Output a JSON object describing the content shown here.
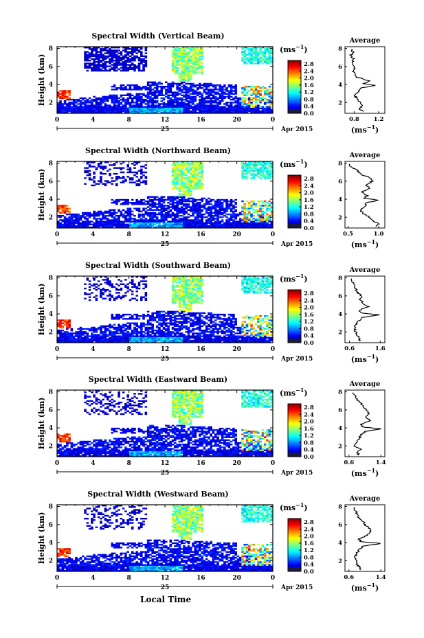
{
  "figure": {
    "xlabel_shared": "Local Time",
    "day_label": "25",
    "month_label": "Apr 2015",
    "height_label": "Height (km)",
    "cbar_unit": "(ms",
    "cbar_unit_exp": "−1",
    "cbar_unit_close": ")",
    "avg_title": "Average",
    "avg_unit": "(ms",
    "avg_unit_exp": "−1",
    "avg_unit_close": ")"
  },
  "chart_data": [
    {
      "type": "heatmap",
      "title": "Spectral Width (Vertical Beam)",
      "x_ticks": [
        "0",
        "4",
        "8",
        "12",
        "16",
        "20",
        "0"
      ],
      "y_ticks": [
        "2",
        "4",
        "6",
        "8"
      ],
      "xlim": [
        0,
        24
      ],
      "ylim": [
        0.8,
        8.2
      ],
      "colorbar_ticks": [
        "0.0",
        "0.4",
        "0.8",
        "1.2",
        "1.6",
        "2.0",
        "2.4",
        "2.8"
      ],
      "clim": [
        0,
        3.0
      ],
      "avg_title": "Average",
      "avg_x_ticks": [
        "0.8",
        "1.2"
      ],
      "avg_xlim": [
        0.65,
        1.3
      ],
      "avg_y_ticks": [
        "2",
        "4",
        "6",
        "8"
      ],
      "avg_profile": {
        "height": [
          1.0,
          1.3,
          1.6,
          2.0,
          2.4,
          2.8,
          3.2,
          3.6,
          3.9,
          4.1,
          4.4,
          4.8,
          5.2,
          5.6,
          6.0,
          6.4,
          6.8,
          7.2,
          7.6,
          8.0
        ],
        "value": [
          0.95,
          0.88,
          0.93,
          0.9,
          0.85,
          0.8,
          0.86,
          0.9,
          1.15,
          0.95,
          1.05,
          0.85,
          0.8,
          0.78,
          0.82,
          0.76,
          0.8,
          0.74,
          0.78,
          0.75
        ]
      }
    },
    {
      "type": "heatmap",
      "title": "Spectral Width (Northward Beam)",
      "x_ticks": [
        "0",
        "4",
        "8",
        "12",
        "16",
        "20",
        "0"
      ],
      "y_ticks": [
        "2",
        "4",
        "6",
        "8"
      ],
      "xlim": [
        0,
        24
      ],
      "ylim": [
        0.8,
        8.2
      ],
      "colorbar_ticks": [
        "0.0",
        "0.4",
        "0.8",
        "1.2",
        "1.6",
        "2.0",
        "2.4",
        "2.8"
      ],
      "clim": [
        0,
        3.0
      ],
      "avg_title": "Average",
      "avg_x_ticks": [
        "0.5",
        "1.0"
      ],
      "avg_xlim": [
        0.45,
        1.1
      ],
      "avg_y_ticks": [
        "2",
        "4",
        "6",
        "8"
      ],
      "avg_profile": {
        "height": [
          1.0,
          1.3,
          1.6,
          2.0,
          2.4,
          2.8,
          3.2,
          3.6,
          3.9,
          4.1,
          4.4,
          4.8,
          5.2,
          5.6,
          6.0,
          6.4,
          6.8,
          7.2,
          7.6,
          8.0
        ],
        "value": [
          0.95,
          1.0,
          0.9,
          0.85,
          0.75,
          0.7,
          0.78,
          0.8,
          1.0,
          0.75,
          0.82,
          0.72,
          0.85,
          0.8,
          0.9,
          0.85,
          0.7,
          0.65,
          0.55,
          0.5
        ]
      }
    },
    {
      "type": "heatmap",
      "title": "Spectral Width (Southward Beam)",
      "x_ticks": [
        "0",
        "4",
        "8",
        "12",
        "16",
        "20",
        "0"
      ],
      "y_ticks": [
        "2",
        "4",
        "6",
        "8"
      ],
      "xlim": [
        0,
        24
      ],
      "ylim": [
        0.8,
        8.2
      ],
      "colorbar_ticks": [
        "0.0",
        "0.4",
        "0.8",
        "1.2",
        "1.6",
        "2.0",
        "2.4",
        "2.8"
      ],
      "clim": [
        0,
        3.0
      ],
      "avg_title": "Average",
      "avg_x_ticks": [
        "0.6",
        "1.6"
      ],
      "avg_xlim": [
        0.45,
        1.75
      ],
      "avg_y_ticks": [
        "2",
        "4",
        "6",
        "8"
      ],
      "avg_profile": {
        "height": [
          1.0,
          1.3,
          1.6,
          2.0,
          2.4,
          2.8,
          3.2,
          3.6,
          3.9,
          4.1,
          4.4,
          4.8,
          5.2,
          5.6,
          6.0,
          6.4,
          6.8,
          7.2,
          7.6,
          8.0
        ],
        "value": [
          0.9,
          0.95,
          0.85,
          0.8,
          0.75,
          0.8,
          0.9,
          1.0,
          1.55,
          1.0,
          0.9,
          1.2,
          1.05,
          0.95,
          1.0,
          0.85,
          0.8,
          0.75,
          0.7,
          0.65
        ]
      }
    },
    {
      "type": "heatmap",
      "title": "Spectral Width (Eastward Beam)",
      "x_ticks": [
        "0",
        "4",
        "8",
        "12",
        "16",
        "20",
        "0"
      ],
      "y_ticks": [
        "2",
        "4",
        "6",
        "8"
      ],
      "xlim": [
        0,
        24
      ],
      "ylim": [
        0.8,
        8.2
      ],
      "colorbar_ticks": [
        "0.0",
        "0.4",
        "0.8",
        "1.2",
        "1.6",
        "2.0",
        "2.4",
        "2.8"
      ],
      "clim": [
        0,
        3.0
      ],
      "avg_title": "Average",
      "avg_x_ticks": [
        "0.6",
        "1.4"
      ],
      "avg_xlim": [
        0.5,
        1.5
      ],
      "avg_y_ticks": [
        "2",
        "4",
        "6",
        "8"
      ],
      "avg_profile": {
        "height": [
          1.0,
          1.3,
          1.6,
          2.0,
          2.4,
          2.8,
          3.2,
          3.6,
          3.9,
          4.1,
          4.4,
          4.8,
          5.2,
          5.6,
          6.0,
          6.4,
          6.8,
          7.2,
          7.6,
          8.0
        ],
        "value": [
          0.85,
          0.8,
          0.9,
          0.75,
          0.8,
          0.85,
          0.9,
          1.0,
          1.4,
          0.95,
          0.9,
          1.15,
          1.0,
          1.1,
          1.05,
          0.95,
          0.9,
          0.8,
          0.75,
          0.7
        ]
      }
    },
    {
      "type": "heatmap",
      "title": "Spectral Width (Westward Beam)",
      "x_ticks": [
        "0",
        "4",
        "8",
        "12",
        "16",
        "20",
        "0"
      ],
      "y_ticks": [
        "2",
        "4",
        "6",
        "8"
      ],
      "xlim": [
        0,
        24
      ],
      "ylim": [
        0.8,
        8.2
      ],
      "colorbar_ticks": [
        "0.0",
        "0.4",
        "0.8",
        "1.2",
        "1.6",
        "2.0",
        "2.4",
        "2.8"
      ],
      "clim": [
        0,
        3.0
      ],
      "avg_title": "Average",
      "avg_x_ticks": [
        "0.6",
        "1.4"
      ],
      "avg_xlim": [
        0.5,
        1.5
      ],
      "avg_y_ticks": [
        "2",
        "4",
        "6",
        "8"
      ],
      "avg_profile": {
        "height": [
          1.0,
          1.3,
          1.6,
          2.0,
          2.4,
          2.8,
          3.2,
          3.6,
          3.9,
          4.1,
          4.4,
          4.8,
          5.2,
          5.6,
          6.0,
          6.4,
          6.8,
          7.2,
          7.6,
          8.0
        ],
        "value": [
          0.9,
          0.85,
          0.8,
          0.8,
          0.75,
          0.8,
          0.85,
          0.95,
          1.4,
          0.9,
          0.85,
          1.05,
          1.15,
          1.1,
          1.0,
          0.95,
          0.85,
          0.8,
          0.75,
          0.7
        ]
      }
    }
  ]
}
